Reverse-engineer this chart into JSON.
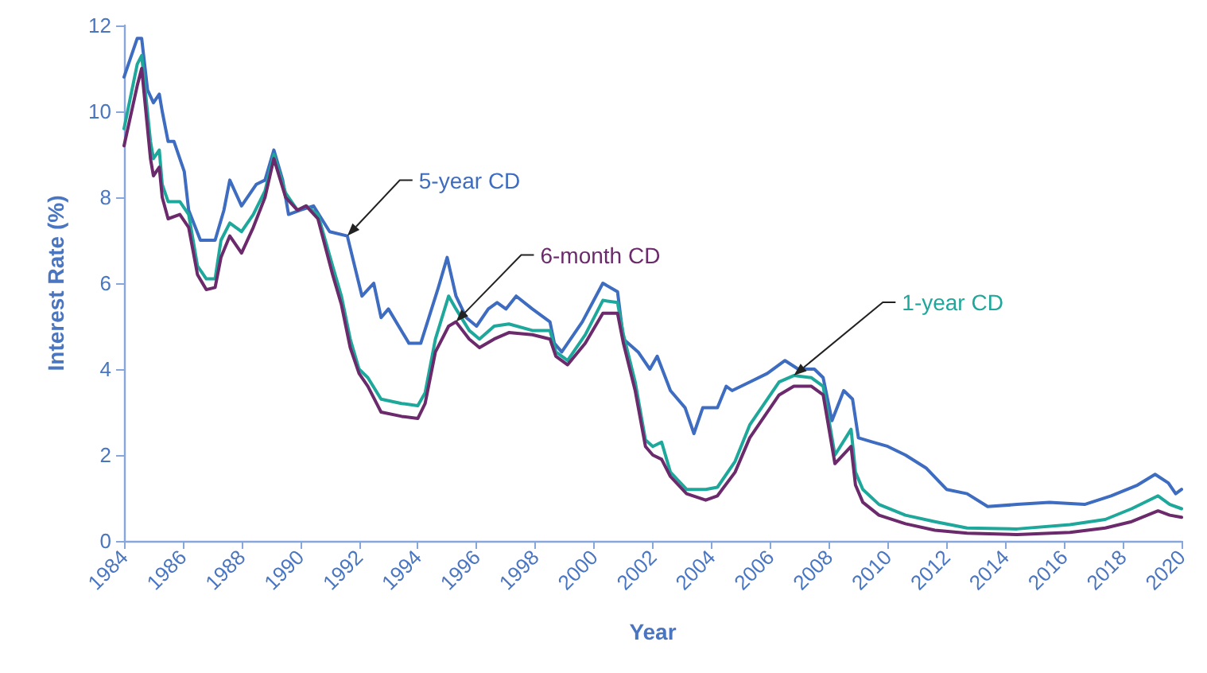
{
  "chart_data": {
    "type": "line",
    "xlabel": "Year",
    "ylabel": "Interest Rate (%)",
    "xlim": [
      1984,
      2020
    ],
    "xticks": [
      1984,
      1986,
      1988,
      1990,
      1992,
      1994,
      1996,
      1998,
      2000,
      2002,
      2004,
      2006,
      2008,
      2010,
      2012,
      2014,
      2016,
      2018,
      2020
    ],
    "ylim": [
      0,
      12
    ],
    "yticks": [
      0,
      2,
      4,
      6,
      8,
      10,
      12
    ],
    "grid": false,
    "marker": "none",
    "line_style": "solid",
    "series": [
      {
        "name": "5-year CD",
        "color": "#3d6cc0",
        "x": [
          1984.0,
          1984.45,
          1984.6,
          1984.8,
          1985.0,
          1985.2,
          1985.3,
          1985.5,
          1985.7,
          1986.05,
          1986.2,
          1986.6,
          1987.1,
          1987.4,
          1987.6,
          1988.0,
          1988.5,
          1988.8,
          1989.1,
          1989.4,
          1989.6,
          1990.0,
          1990.45,
          1991.0,
          1991.6,
          1992.1,
          1992.5,
          1992.75,
          1993.0,
          1993.7,
          1994.1,
          1994.7,
          1995.0,
          1995.3,
          1995.65,
          1996.0,
          1996.4,
          1996.7,
          1997.0,
          1997.35,
          1997.9,
          1998.5,
          1998.65,
          1998.9,
          1999.6,
          2000.3,
          2000.8,
          2001.0,
          2001.5,
          2001.9,
          2002.15,
          2002.6,
          2003.1,
          2003.4,
          2003.7,
          2004.2,
          2004.5,
          2004.7,
          2005.3,
          2005.9,
          2006.5,
          2006.95,
          2007.5,
          2007.8,
          2008.1,
          2008.5,
          2008.8,
          2009.0,
          2009.5,
          2010.0,
          2010.6,
          2011.3,
          2012.0,
          2012.7,
          2013.4,
          2014.4,
          2015.5,
          2016.7,
          2017.6,
          2018.5,
          2019.1,
          2019.55,
          2019.8,
          2020.0
        ],
        "values": [
          10.8,
          11.7,
          11.7,
          10.5,
          10.2,
          10.4,
          10.0,
          9.3,
          9.3,
          8.6,
          7.7,
          7.0,
          7.0,
          7.7,
          8.4,
          7.8,
          8.3,
          8.4,
          9.1,
          8.4,
          7.6,
          7.7,
          7.8,
          7.2,
          7.1,
          5.7,
          6.0,
          5.2,
          5.4,
          4.6,
          4.6,
          5.9,
          6.6,
          5.7,
          5.2,
          5.0,
          5.4,
          5.55,
          5.4,
          5.7,
          5.4,
          5.1,
          4.6,
          4.4,
          5.1,
          6.0,
          5.8,
          4.7,
          4.4,
          4.0,
          4.3,
          3.5,
          3.1,
          2.5,
          3.1,
          3.1,
          3.6,
          3.5,
          3.7,
          3.9,
          4.2,
          4.0,
          4.0,
          3.8,
          2.8,
          3.5,
          3.3,
          2.4,
          2.3,
          2.2,
          2.0,
          1.7,
          1.2,
          1.1,
          0.8,
          0.85,
          0.9,
          0.85,
          1.05,
          1.3,
          1.55,
          1.35,
          1.1,
          1.2
        ]
      },
      {
        "name": "1-year CD",
        "color": "#1ea89c",
        "x": [
          1984.0,
          1984.45,
          1984.6,
          1984.9,
          1985.0,
          1985.2,
          1985.3,
          1985.5,
          1985.9,
          1986.2,
          1986.5,
          1986.8,
          1987.1,
          1987.3,
          1987.6,
          1988.0,
          1988.4,
          1988.8,
          1989.1,
          1989.5,
          1989.9,
          1990.2,
          1990.6,
          1991.1,
          1991.4,
          1991.7,
          1992.0,
          1992.3,
          1992.75,
          1993.45,
          1994.0,
          1994.25,
          1994.6,
          1995.05,
          1995.3,
          1995.75,
          1996.1,
          1996.6,
          1997.1,
          1997.9,
          1998.5,
          1998.7,
          1999.1,
          1999.7,
          2000.3,
          2000.8,
          2001.0,
          2001.4,
          2001.75,
          2002.0,
          2002.3,
          2002.6,
          2003.15,
          2003.8,
          2004.2,
          2004.8,
          2005.3,
          2005.8,
          2006.3,
          2006.8,
          2007.4,
          2007.8,
          2008.2,
          2008.75,
          2008.9,
          2009.15,
          2009.7,
          2010.6,
          2011.6,
          2012.7,
          2014.4,
          2016.2,
          2017.4,
          2018.3,
          2019.2,
          2019.6,
          2020.0
        ],
        "values": [
          9.6,
          11.1,
          11.3,
          9.3,
          8.9,
          9.1,
          8.3,
          7.9,
          7.9,
          7.6,
          6.4,
          6.1,
          6.1,
          7.0,
          7.4,
          7.2,
          7.6,
          8.15,
          9.0,
          8.1,
          7.7,
          7.8,
          7.6,
          6.4,
          5.7,
          4.7,
          4.0,
          3.8,
          3.3,
          3.2,
          3.15,
          3.45,
          4.7,
          5.7,
          5.4,
          4.9,
          4.7,
          5.0,
          5.05,
          4.9,
          4.9,
          4.4,
          4.2,
          4.8,
          5.6,
          5.55,
          4.8,
          3.7,
          2.35,
          2.2,
          2.3,
          1.6,
          1.2,
          1.2,
          1.25,
          1.85,
          2.7,
          3.2,
          3.7,
          3.85,
          3.8,
          3.6,
          2.0,
          2.6,
          1.6,
          1.2,
          0.85,
          0.6,
          0.45,
          0.3,
          0.28,
          0.38,
          0.5,
          0.75,
          1.05,
          0.85,
          0.75
        ]
      },
      {
        "name": "6-month CD",
        "color": "#6b2a6b",
        "x": [
          1984.0,
          1984.45,
          1984.6,
          1984.9,
          1985.0,
          1985.2,
          1985.3,
          1985.5,
          1985.9,
          1986.2,
          1986.5,
          1986.8,
          1987.1,
          1987.3,
          1987.6,
          1988.0,
          1988.4,
          1988.8,
          1989.1,
          1989.5,
          1989.9,
          1990.2,
          1990.6,
          1991.1,
          1991.4,
          1991.7,
          1992.0,
          1992.3,
          1992.75,
          1993.45,
          1994.0,
          1994.25,
          1994.6,
          1995.05,
          1995.3,
          1995.75,
          1996.1,
          1996.6,
          1997.1,
          1997.9,
          1998.5,
          1998.7,
          1999.1,
          1999.7,
          2000.3,
          2000.8,
          2001.0,
          2001.4,
          2001.75,
          2002.0,
          2002.3,
          2002.6,
          2003.15,
          2003.8,
          2004.2,
          2004.8,
          2005.3,
          2005.8,
          2006.3,
          2006.8,
          2007.4,
          2007.8,
          2008.2,
          2008.75,
          2008.9,
          2009.15,
          2009.7,
          2010.6,
          2011.6,
          2012.7,
          2014.4,
          2016.2,
          2017.4,
          2018.3,
          2019.2,
          2019.6,
          2020.0
        ],
        "values": [
          9.2,
          10.6,
          11.0,
          8.9,
          8.5,
          8.7,
          8.0,
          7.5,
          7.6,
          7.3,
          6.2,
          5.85,
          5.9,
          6.6,
          7.1,
          6.7,
          7.3,
          8.0,
          8.9,
          8.0,
          7.7,
          7.8,
          7.5,
          6.2,
          5.5,
          4.5,
          3.9,
          3.6,
          3.0,
          2.9,
          2.85,
          3.2,
          4.4,
          5.0,
          5.1,
          4.7,
          4.5,
          4.7,
          4.85,
          4.8,
          4.7,
          4.3,
          4.1,
          4.6,
          5.3,
          5.3,
          4.6,
          3.5,
          2.2,
          2.0,
          1.9,
          1.5,
          1.1,
          0.95,
          1.05,
          1.6,
          2.4,
          2.9,
          3.4,
          3.6,
          3.6,
          3.4,
          1.8,
          2.2,
          1.3,
          0.9,
          0.6,
          0.4,
          0.25,
          0.18,
          0.15,
          0.2,
          0.3,
          0.45,
          0.7,
          0.6,
          0.55
        ]
      }
    ]
  }
}
